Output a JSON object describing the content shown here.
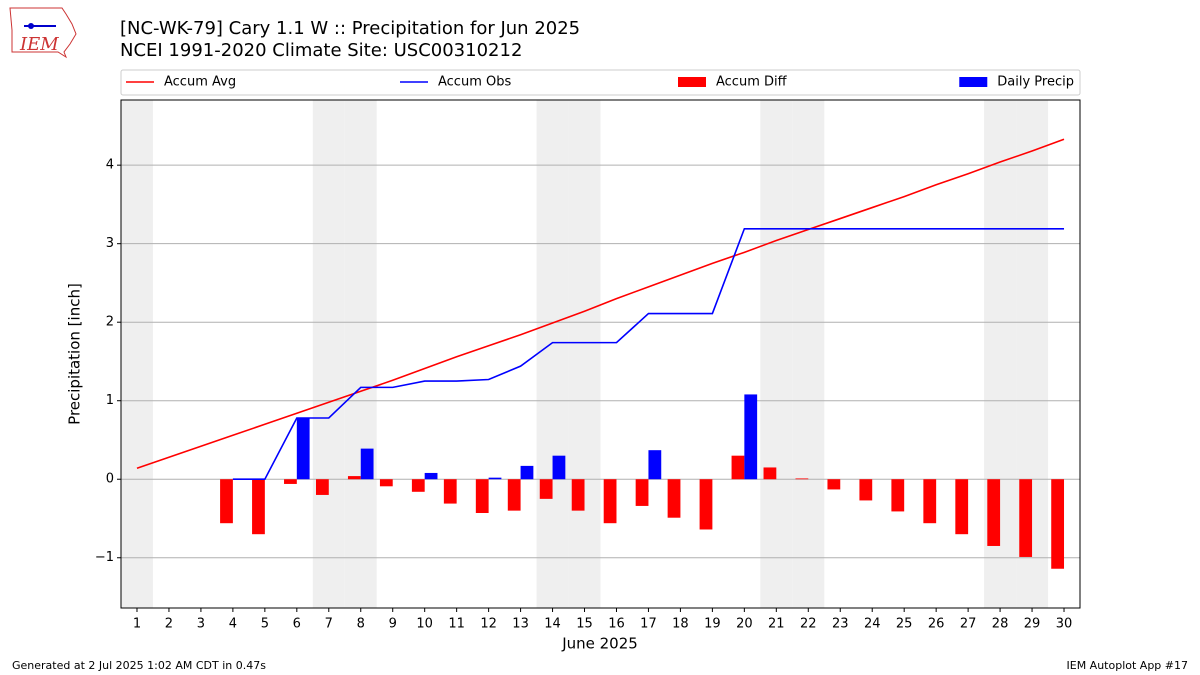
{
  "logo_text": "IEM",
  "footer_left": "Generated at 2 Jul 2025 1:02 AM CDT in 0.47s",
  "footer_right": "IEM Autoplot App #17",
  "chart_data": {
    "type": "line_bar",
    "title": "[NC-WK-79] Cary 1.1 W :: Precipitation for Jun 2025",
    "subtitle": "NCEI 1991-2020 Climate Site: USC00310212",
    "x_label": "June 2025",
    "y_label": "Precipitation [inch]",
    "x": [
      1,
      2,
      3,
      4,
      5,
      6,
      7,
      8,
      9,
      10,
      11,
      12,
      13,
      14,
      15,
      16,
      17,
      18,
      19,
      20,
      21,
      22,
      23,
      24,
      25,
      26,
      27,
      28,
      29,
      30
    ],
    "xlim": [
      0.5,
      30.5
    ],
    "xticks": [
      1,
      2,
      3,
      4,
      5,
      6,
      7,
      8,
      9,
      10,
      11,
      12,
      13,
      14,
      15,
      16,
      17,
      18,
      19,
      20,
      21,
      22,
      23,
      24,
      25,
      26,
      27,
      28,
      29,
      30
    ],
    "ylim": [
      -1.64,
      4.83
    ],
    "yticks": [
      {
        "value": -1,
        "label": "−1"
      },
      0,
      1,
      2,
      3,
      4
    ],
    "grid": true,
    "legend": "top",
    "shaded_days": [
      1,
      7,
      8,
      14,
      15,
      21,
      22,
      28,
      29
    ],
    "series": [
      {
        "name": "Accum Avg",
        "type": "line",
        "color": "#ff0000",
        "values": [
          0.14,
          0.28,
          0.42,
          0.56,
          0.7,
          0.84,
          0.98,
          1.12,
          1.26,
          1.41,
          1.56,
          1.7,
          1.84,
          1.99,
          2.14,
          2.3,
          2.45,
          2.6,
          2.75,
          2.89,
          3.04,
          3.18,
          3.32,
          3.46,
          3.6,
          3.75,
          3.89,
          4.04,
          4.18,
          4.33
        ]
      },
      {
        "name": "Accum Obs",
        "type": "line",
        "color": "#0000ff",
        "values": [
          null,
          null,
          null,
          0,
          0,
          0.78,
          0.78,
          1.17,
          1.17,
          1.25,
          1.25,
          1.27,
          1.44,
          1.74,
          1.74,
          1.74,
          2.11,
          2.11,
          2.11,
          3.19,
          3.19,
          3.19,
          3.19,
          3.19,
          3.19,
          3.19,
          3.19,
          3.19,
          3.19,
          3.19
        ]
      },
      {
        "name": "Accum Diff",
        "type": "bar",
        "offset": "left",
        "color": "#ff0000",
        "values": [
          null,
          null,
          null,
          -0.56,
          -0.7,
          -0.06,
          -0.2,
          0.04,
          -0.09,
          -0.16,
          -0.31,
          -0.43,
          -0.4,
          -0.25,
          -0.4,
          -0.56,
          -0.34,
          -0.49,
          -0.64,
          0.3,
          0.15,
          0.01,
          -0.13,
          -0.27,
          -0.41,
          -0.56,
          -0.7,
          -0.85,
          -0.99,
          -1.14
        ]
      },
      {
        "name": "Daily Precip",
        "type": "bar",
        "offset": "right",
        "color": "#0000ff",
        "values": [
          null,
          null,
          null,
          0,
          0,
          0.78,
          0,
          0.39,
          0,
          0.08,
          0,
          0.02,
          0.17,
          0.3,
          0,
          0,
          0.37,
          0,
          0,
          1.08,
          0,
          0,
          0,
          0,
          0,
          0,
          0,
          0,
          0,
          0
        ]
      }
    ]
  }
}
